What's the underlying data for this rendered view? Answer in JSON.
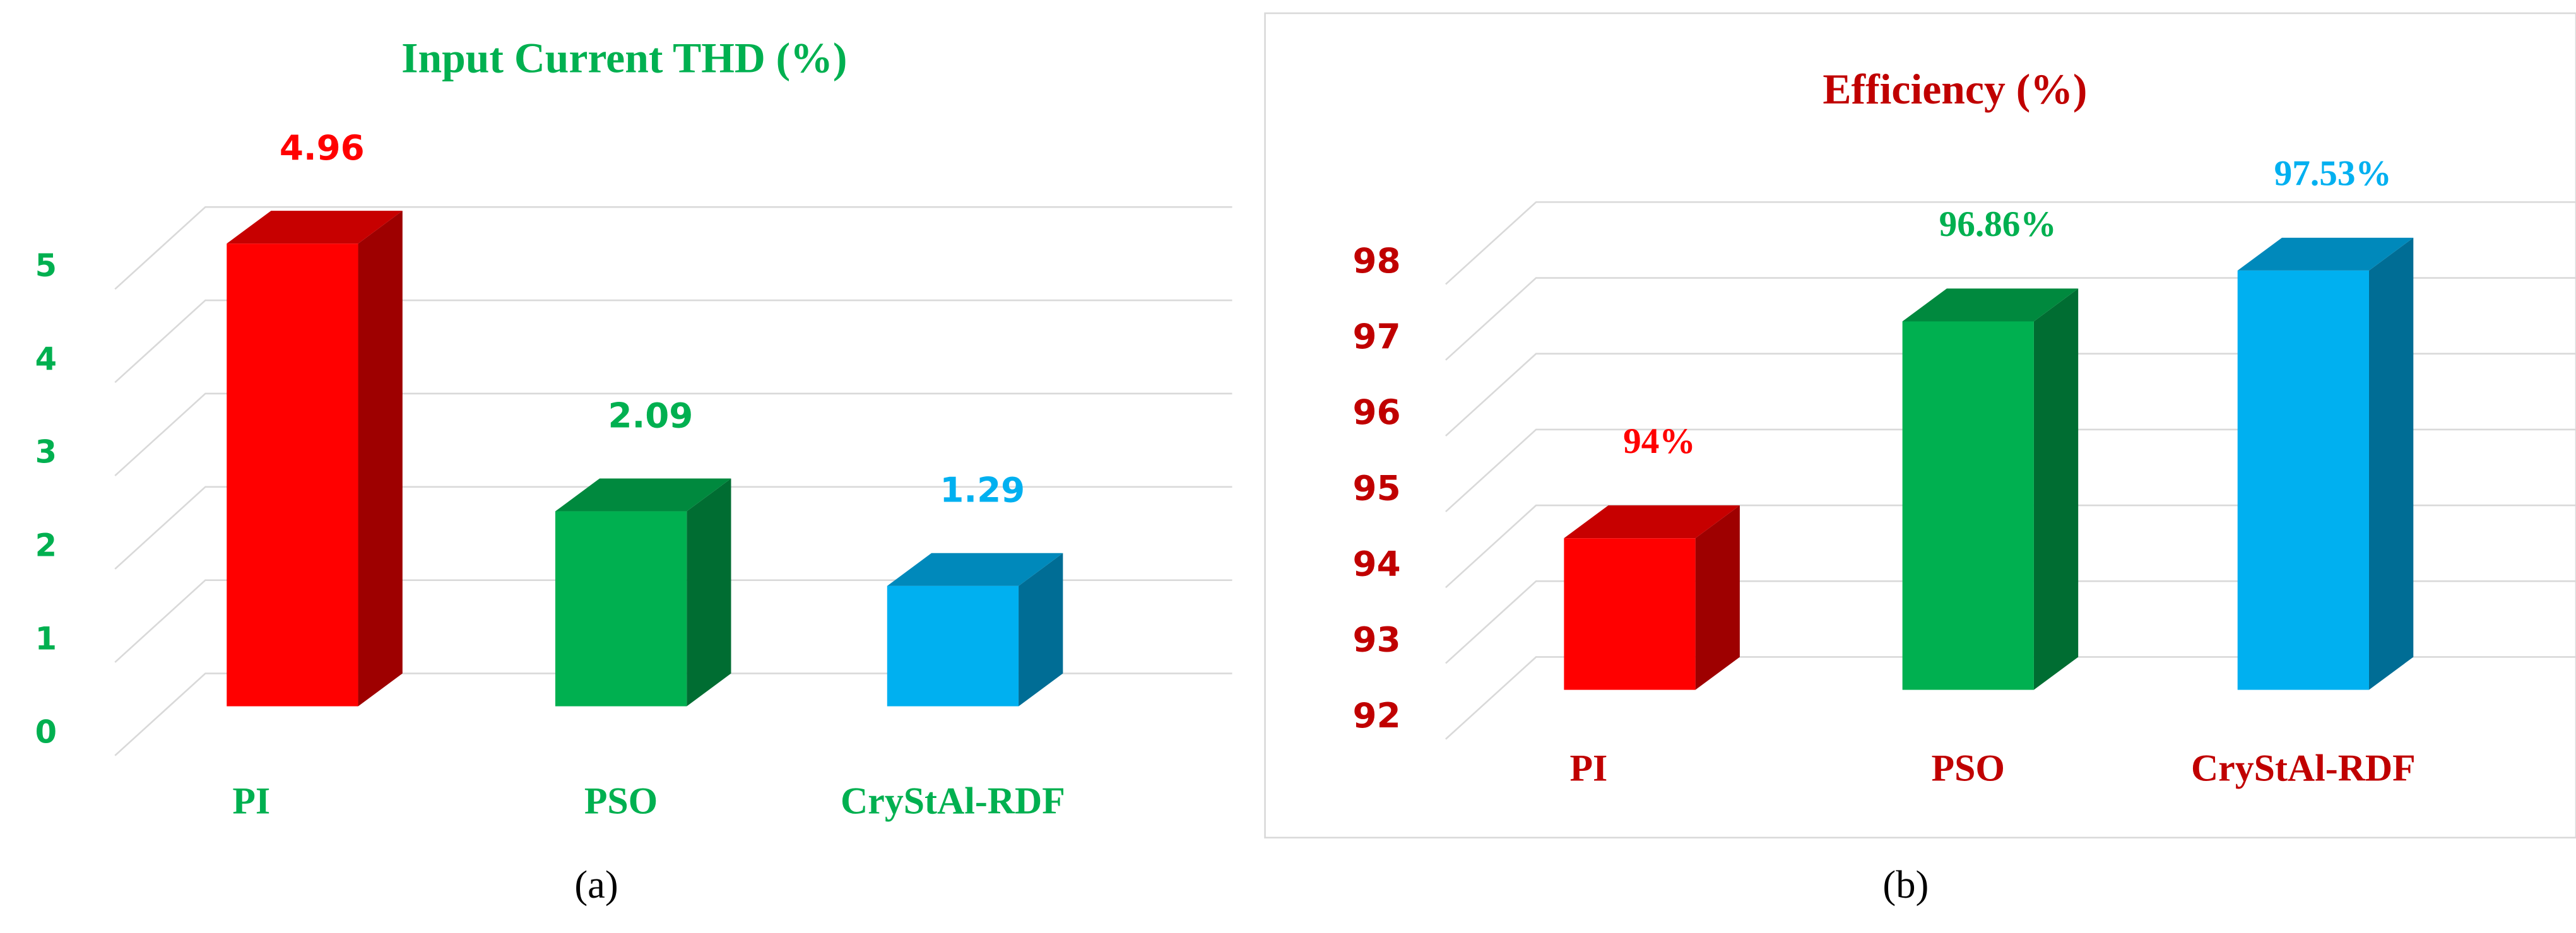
{
  "chart_data": [
    {
      "type": "bar3d",
      "title": "Input Current THD (%)",
      "title_color": "#00b050",
      "axis_color": "#00b050",
      "categories": [
        "PI",
        "PSO",
        "CryStAl-RDF"
      ],
      "values": [
        4.96,
        2.09,
        1.29
      ],
      "colors": [
        "#ff0000",
        "#00b050",
        "#00b0f0"
      ],
      "ylim": [
        0,
        5
      ],
      "yticks": [
        0,
        1,
        2,
        3,
        4,
        5
      ],
      "grid": true,
      "caption": "(a)"
    },
    {
      "type": "bar3d",
      "title": "Efficiency (%)",
      "title_color": "#c00000",
      "axis_color": "#c00000",
      "categories": [
        "PI",
        "PSO",
        "CryStAl-RDF"
      ],
      "values": [
        94,
        96.86,
        97.53
      ],
      "value_labels": [
        "94%",
        "96.86%",
        "97.53%"
      ],
      "colors": [
        "#ff0000",
        "#00b050",
        "#00b0f0"
      ],
      "ylim": [
        92,
        98
      ],
      "yticks": [
        92,
        93,
        94,
        95,
        96,
        97,
        98
      ],
      "grid": true,
      "caption": "(b)"
    }
  ]
}
